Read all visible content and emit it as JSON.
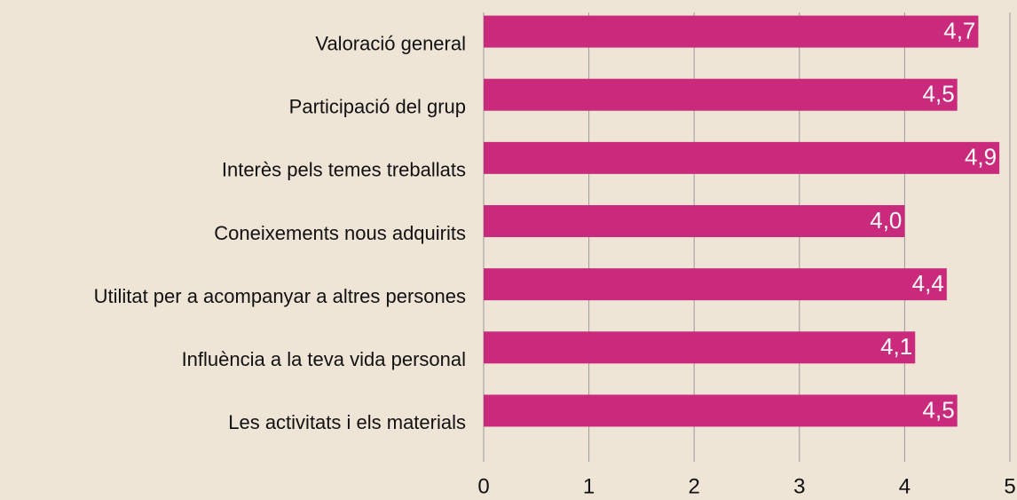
{
  "chart_data": {
    "type": "barh",
    "categories": [
      "Valoració general",
      "Participació del grup",
      "Interès pels temes treballats",
      "Coneixements nous adquirits",
      "Utilitat per a acompanyar a altres persones",
      "Influència a la teva vida personal",
      "Les activitats i els materials"
    ],
    "values": [
      4.7,
      4.5,
      4.9,
      4.0,
      4.4,
      4.1,
      4.5
    ],
    "value_labels": [
      "4,7",
      "4,5",
      "4,9",
      "4,0",
      "4,4",
      "4,1",
      "4,5"
    ],
    "color": "#c92a7b",
    "xlim": [
      0,
      5
    ],
    "xticks": [
      0,
      1,
      2,
      3,
      4,
      5
    ],
    "grid": true
  }
}
